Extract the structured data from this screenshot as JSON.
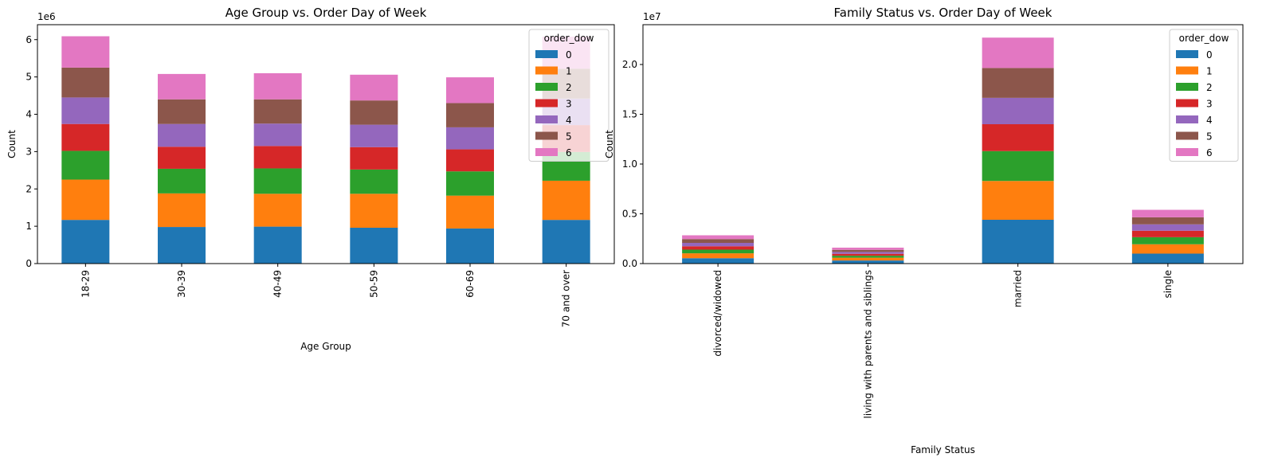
{
  "chart_data": [
    {
      "type": "bar",
      "stacked": true,
      "title": "Age Group vs. Order Day of Week",
      "xlabel": "Age Group",
      "ylabel": "Count",
      "y_offset_label": "1e6",
      "ylim": [
        0,
        6400000
      ],
      "yticks": [
        0,
        1000000,
        2000000,
        3000000,
        4000000,
        5000000,
        6000000
      ],
      "ytick_labels": [
        "0",
        "1",
        "2",
        "3",
        "4",
        "5",
        "6"
      ],
      "categories": [
        "18-29",
        "30-39",
        "40-49",
        "50-59",
        "60-69",
        "70 and over"
      ],
      "legend_title": "order_dow",
      "legend_location": "upper right",
      "series": [
        {
          "name": "0",
          "color": "#1f77b4",
          "values": [
            1170000,
            980000,
            990000,
            960000,
            940000,
            1170000
          ]
        },
        {
          "name": "1",
          "color": "#ff7f0e",
          "values": [
            1080000,
            900000,
            880000,
            910000,
            880000,
            1050000
          ]
        },
        {
          "name": "2",
          "color": "#2ca02c",
          "values": [
            770000,
            660000,
            680000,
            650000,
            650000,
            770000
          ]
        },
        {
          "name": "3",
          "color": "#d62728",
          "values": [
            720000,
            590000,
            600000,
            600000,
            590000,
            720000
          ]
        },
        {
          "name": "4",
          "color": "#9467bd",
          "values": [
            710000,
            610000,
            600000,
            600000,
            590000,
            710000
          ]
        },
        {
          "name": "5",
          "color": "#8c564b",
          "values": [
            800000,
            660000,
            650000,
            650000,
            650000,
            800000
          ]
        },
        {
          "name": "6",
          "color": "#e377c2",
          "values": [
            840000,
            680000,
            700000,
            690000,
            690000,
            860000
          ]
        }
      ]
    },
    {
      "type": "bar",
      "stacked": true,
      "title": "Family Status vs. Order Day of Week",
      "xlabel": "Family Status",
      "ylabel": "Count",
      "y_offset_label": "1e7",
      "ylim": [
        0,
        24000000
      ],
      "yticks": [
        0,
        5000000,
        10000000,
        15000000,
        20000000
      ],
      "ytick_labels": [
        "0.0",
        "0.5",
        "1.0",
        "1.5",
        "2.0"
      ],
      "categories": [
        "divorced/widowed",
        "living with parents and siblings",
        "married",
        "single"
      ],
      "legend_title": "order_dow",
      "legend_location": "upper right",
      "series": [
        {
          "name": "0",
          "color": "#1f77b4",
          "values": [
            540000,
            310000,
            4400000,
            1000000
          ]
        },
        {
          "name": "1",
          "color": "#ff7f0e",
          "values": [
            490000,
            280000,
            3900000,
            940000
          ]
        },
        {
          "name": "2",
          "color": "#2ca02c",
          "values": [
            370000,
            200000,
            3000000,
            710000
          ]
        },
        {
          "name": "3",
          "color": "#d62728",
          "values": [
            340000,
            190000,
            2700000,
            650000
          ]
        },
        {
          "name": "4",
          "color": "#9467bd",
          "values": [
            340000,
            190000,
            2650000,
            640000
          ]
        },
        {
          "name": "5",
          "color": "#8c564b",
          "values": [
            380000,
            210000,
            3000000,
            710000
          ]
        },
        {
          "name": "6",
          "color": "#e377c2",
          "values": [
            380000,
            220000,
            3050000,
            750000
          ]
        }
      ]
    }
  ]
}
